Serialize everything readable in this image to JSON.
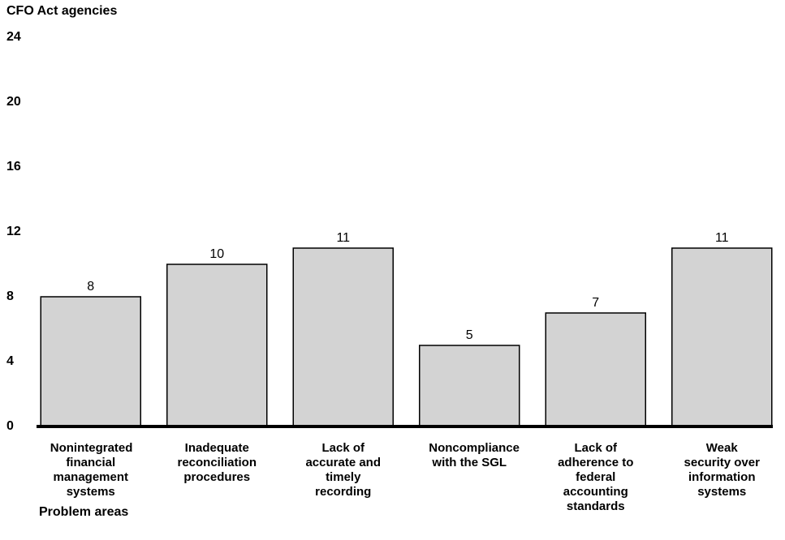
{
  "chart_data": {
    "type": "bar",
    "y_label": "CFO Act agencies",
    "x_label": "Problem areas",
    "categories": [
      "Nonintegrated financial management systems",
      "Inadequate reconciliation procedures",
      "Lack of accurate and timely recording",
      "Noncompliance with the SGL",
      "Lack of adherence to federal accounting standards",
      "Weak security over information systems"
    ],
    "values": [
      8,
      10,
      11,
      5,
      7,
      11
    ],
    "color": "#d3d3d3",
    "ylim": [
      0,
      24
    ],
    "yticks": [
      0,
      4,
      8,
      12,
      16,
      20,
      24
    ],
    "grid": false
  }
}
